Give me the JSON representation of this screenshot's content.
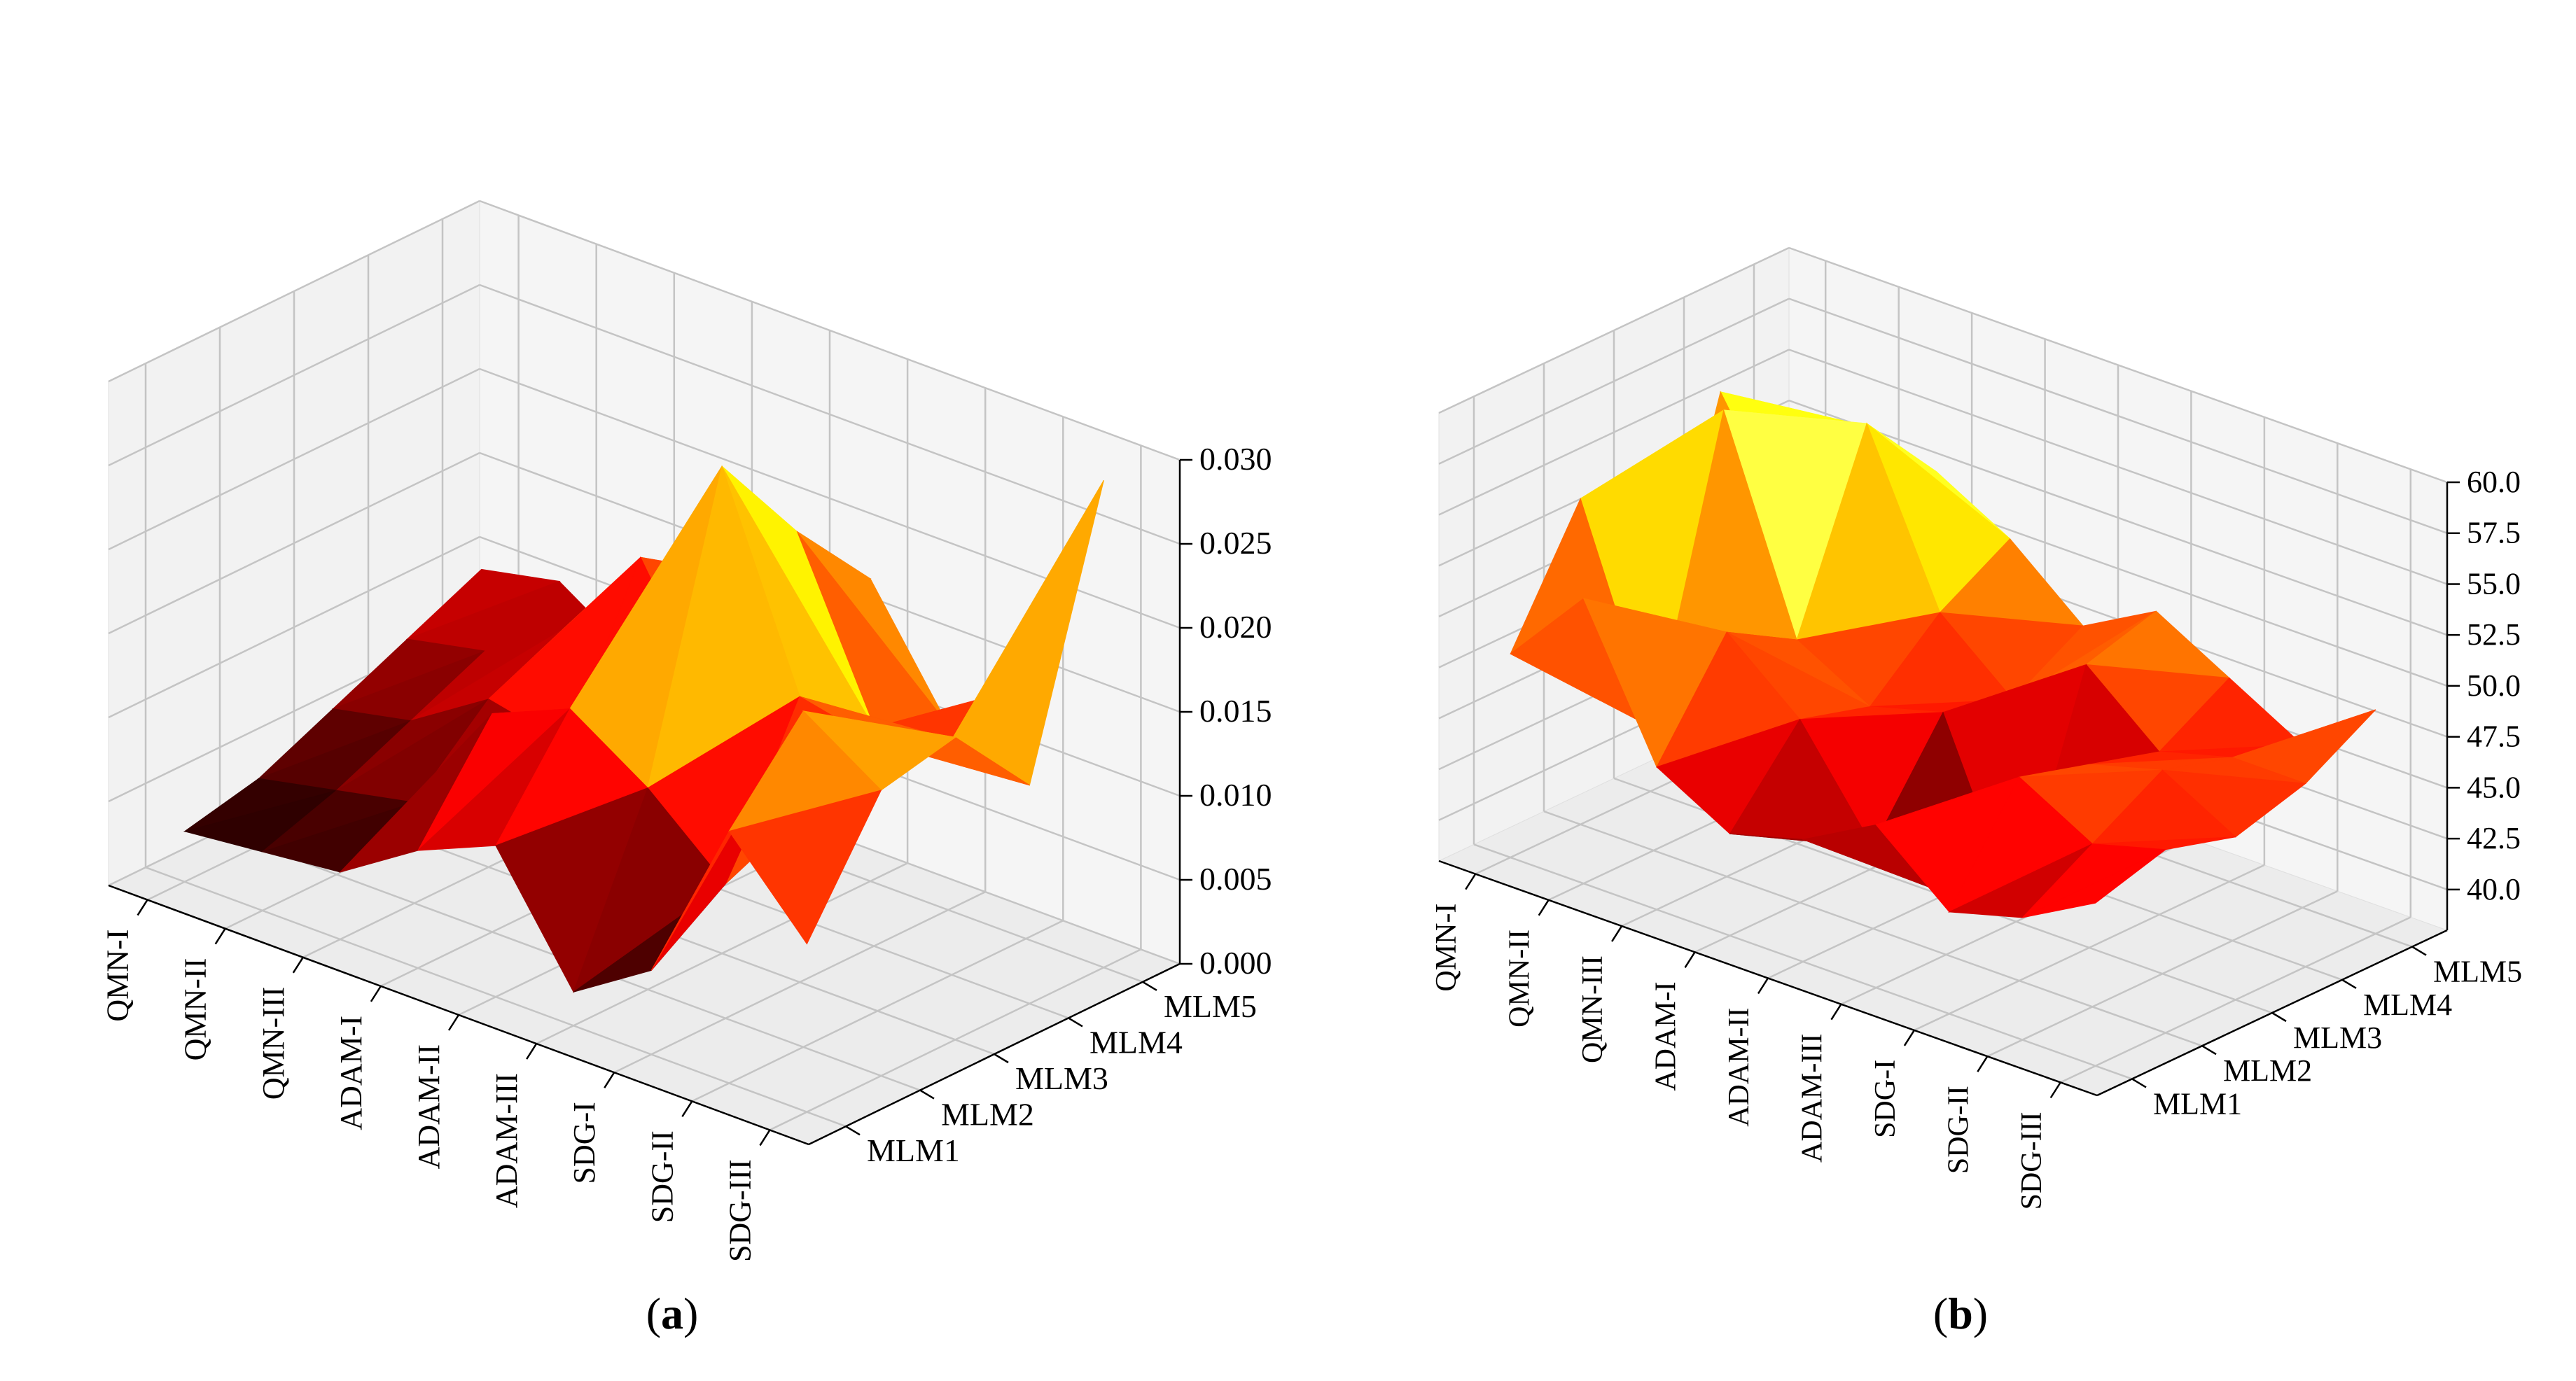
{
  "chart_data": [
    {
      "type": "surface3d",
      "panel_label": "a",
      "x_categories": [
        "QMN-I",
        "QMN-II",
        "QMN-III",
        "ADAM-I",
        "ADAM-II",
        "ADAM-III",
        "SDG-I",
        "SDG-II",
        "SDG-III"
      ],
      "y_categories": [
        "MLM1",
        "MLM2",
        "MLM3",
        "MLM4",
        "MLM5"
      ],
      "z_ticks": [
        "0.000",
        "0.005",
        "0.010",
        "0.015",
        "0.020",
        "0.025",
        "0.030"
      ],
      "zlim": [
        0.0,
        0.03
      ],
      "colormap": "hot",
      "grid": true,
      "values": [
        [
          0.003,
          0.004,
          0.006,
          0.008,
          0.01
        ],
        [
          0.0035,
          0.005,
          0.007,
          0.009,
          0.011
        ],
        [
          0.004,
          0.006,
          0.01,
          0.012,
          0.008
        ],
        [
          0.007,
          0.013,
          0.009,
          0.018,
          0.014
        ],
        [
          0.009,
          0.015,
          0.011,
          0.01,
          0.016
        ],
        [
          0.002,
          0.012,
          0.029,
          0.023,
          0.018
        ],
        [
          0.005,
          0.008,
          0.017,
          0.013,
          0.011
        ],
        [
          0.015,
          0.02,
          0.016,
          0.014,
          0.015
        ],
        [
          0.01,
          0.017,
          0.018,
          0.013,
          0.029
        ]
      ]
    },
    {
      "type": "surface3d",
      "panel_label": "b",
      "x_categories": [
        "QMN-I",
        "QMN-II",
        "QMN-III",
        "ADAM-I",
        "ADAM-II",
        "ADAM-III",
        "SDG-I",
        "SDG-II",
        "SDG-III"
      ],
      "y_categories": [
        "MLM1",
        "MLM2",
        "MLM3",
        "MLM4",
        "MLM5"
      ],
      "z_ticks": [
        "40.0",
        "42.5",
        "45.0",
        "47.5",
        "50.0",
        "52.5",
        "55.0",
        "57.5",
        "60.0"
      ],
      "zlim": [
        38.0,
        60.0
      ],
      "colormap": "hot",
      "grid": true,
      "values": [
        [
          48.0,
          54.0,
          44.0,
          56.0,
          48.0
        ],
        [
          52.0,
          44.0,
          58.0,
          50.0,
          54.0
        ],
        [
          45.0,
          50.0,
          48.0,
          57.0,
          53.0
        ],
        [
          43.0,
          47.0,
          46.0,
          49.0,
          51.0
        ],
        [
          44.0,
          42.0,
          47.0,
          46.0,
          48.0
        ],
        [
          46.0,
          41.0,
          38.5,
          49.0,
          50.0
        ],
        [
          43.0,
          48.0,
          47.0,
          46.0,
          48.0
        ],
        [
          44.0,
          46.0,
          48.0,
          47.0,
          46.0
        ],
        [
          46.0,
          47.0,
          46.0,
          47.0,
          49.0
        ]
      ]
    }
  ]
}
